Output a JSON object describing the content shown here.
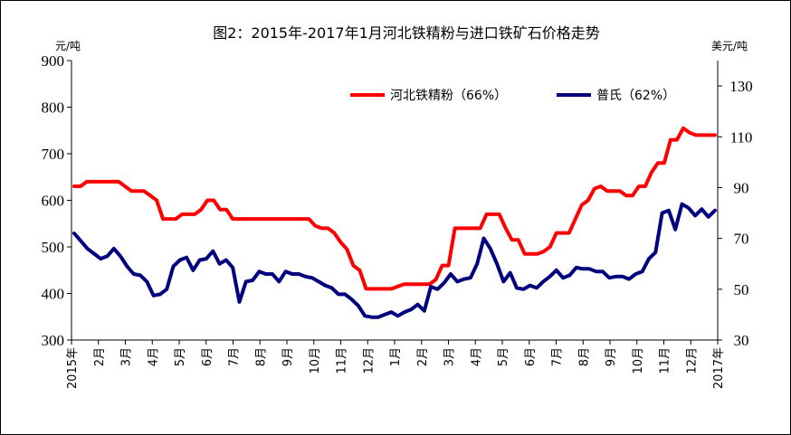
{
  "chart_data": {
    "type": "line",
    "title": "图2：2015年-2017年1月河北铁精粉与进口铁矿石价格走势",
    "ylabel_left": "元/吨",
    "ylabel_right": "美元/吨",
    "ylim_left": [
      300,
      900
    ],
    "ylim_right": [
      30,
      140
    ],
    "yticks_left": [
      "300",
      "400",
      "500",
      "600",
      "700",
      "800",
      "900"
    ],
    "yticks_right": [
      "30",
      "50",
      "70",
      "90",
      "110",
      "130"
    ],
    "x_ticks": [
      "2015年",
      "2月",
      "3月",
      "4月",
      "5月",
      "6月",
      "7月",
      "8月",
      "9月",
      "10月",
      "11月",
      "12月",
      "1月",
      "2月",
      "3月",
      "4月",
      "5月",
      "6月",
      "7月",
      "8月",
      "9月",
      "10月",
      "11月",
      "12月",
      "2017年"
    ],
    "legend_position": "top-right",
    "series": [
      {
        "name": "河北铁精粉（66%）",
        "axis": "left",
        "color": "#ff0000",
        "values": [
          630,
          630,
          640,
          640,
          640,
          640,
          640,
          640,
          630,
          620,
          620,
          620,
          610,
          600,
          560,
          560,
          560,
          570,
          570,
          570,
          580,
          600,
          600,
          580,
          580,
          560,
          560,
          560,
          560,
          560,
          560,
          560,
          560,
          560,
          560,
          560,
          560,
          560,
          545,
          540,
          540,
          530,
          510,
          495,
          460,
          450,
          410,
          410,
          410,
          410,
          410,
          415,
          420,
          420,
          420,
          420,
          420,
          430,
          460,
          460,
          540,
          540,
          540,
          540,
          540,
          570,
          570,
          570,
          540,
          515,
          515,
          485,
          485,
          485,
          490,
          500,
          530,
          530,
          530,
          560,
          590,
          600,
          625,
          630,
          620,
          620,
          620,
          610,
          610,
          630,
          630,
          660,
          680,
          680,
          730,
          730,
          755,
          745,
          740,
          740,
          740,
          740
        ]
      },
      {
        "name": "普氏（62%）",
        "axis": "right",
        "color": "#00007f",
        "values": [
          72,
          69,
          66,
          64,
          62,
          63,
          66,
          63,
          59,
          56,
          55.5,
          53,
          47.5,
          48,
          50,
          59,
          61.5,
          62.5,
          57.5,
          61.5,
          62,
          65,
          60,
          61.5,
          58.5,
          45,
          53,
          53.5,
          57,
          56,
          56,
          53,
          57,
          56,
          56,
          55,
          54.5,
          53,
          51.5,
          50.5,
          48,
          48,
          46,
          43.5,
          39.5,
          39,
          39,
          40,
          41,
          39.5,
          41,
          42,
          44,
          41.5,
          51,
          50,
          52.5,
          56,
          53,
          54,
          54.5,
          60,
          70,
          66,
          60,
          53,
          56.5,
          50.5,
          50,
          51.5,
          50.5,
          53,
          55,
          57.5,
          54.5,
          55.5,
          58.5,
          58,
          58,
          57,
          57,
          54.5,
          55,
          55,
          54,
          56,
          57,
          62,
          64.5,
          80,
          81,
          73.5,
          83.5,
          82,
          79,
          81.5,
          78.5,
          81
        ]
      }
    ]
  }
}
